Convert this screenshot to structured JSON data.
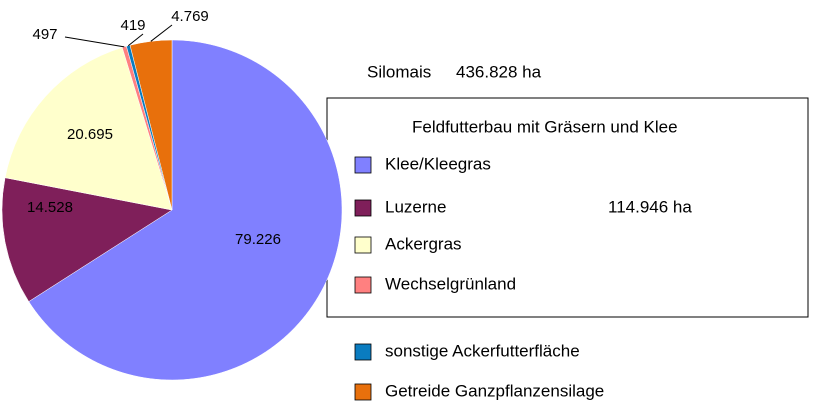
{
  "chart_data": {
    "type": "pie",
    "categories": [
      "Klee/Kleegras",
      "Luzerne",
      "Ackergras",
      "Wechselgrünland",
      "sonstige Ackerfutterfläche",
      "Getreide Ganzpflanzensilage"
    ],
    "values": [
      79226,
      14528,
      20695,
      497,
      419,
      4769
    ],
    "value_labels": [
      "79.226",
      "14.528",
      "20.695",
      "497",
      "419",
      "4.769"
    ],
    "colors": [
      "#8080ff",
      "#7f1f5a",
      "#ffffcc",
      "#ff8080",
      "#0a7cc0",
      "#e8700c"
    ],
    "legend_title": "Feldfutterbau mit Gräsern und Klee",
    "annotations": [
      "Silomais",
      "436.828 ha",
      "114.946 ha"
    ]
  }
}
